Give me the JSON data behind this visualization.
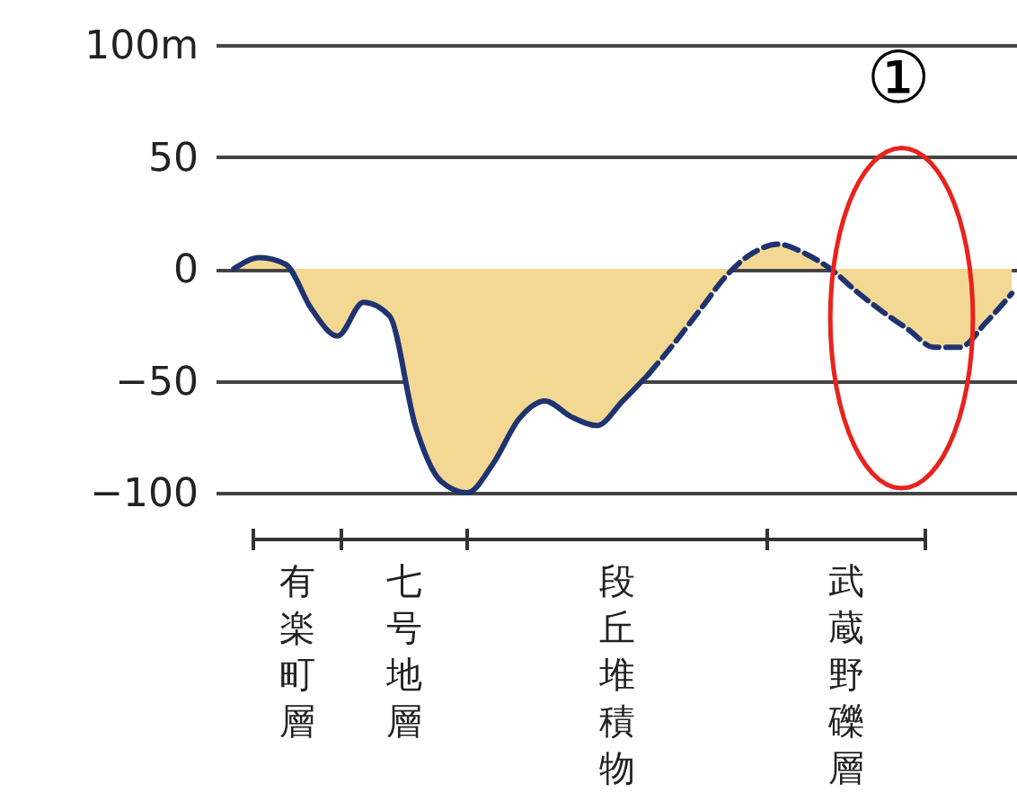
{
  "chart_data": {
    "type": "line",
    "categories": [
      null,
      null,
      null,
      null,
      null,
      null,
      null,
      null,
      null,
      null,
      null,
      null,
      null,
      null,
      null,
      null,
      null,
      null,
      null,
      null,
      null,
      null,
      null,
      null,
      null,
      null,
      null,
      null,
      null,
      null,
      null
    ],
    "series": [
      {
        "type": "area",
        "color": "#f3d894",
        "values": [
          0,
          5,
          2,
          -18,
          -30,
          -15,
          -21,
          -70,
          -95,
          -100,
          -87,
          -67,
          -59,
          -66,
          -70,
          -59,
          -47,
          -33,
          -18,
          -3,
          7,
          11,
          7,
          0,
          -10,
          -19,
          -27,
          -35,
          -35,
          -24,
          -11
        ]
      },
      {
        "color": "#1f3370",
        "line_style": "solid",
        "values": [
          0,
          5,
          2,
          -18,
          -30,
          -15,
          -21,
          -70,
          -95,
          -100,
          -87,
          -67,
          -59,
          -66,
          -70,
          -59,
          -47,
          null,
          null,
          null,
          null,
          null,
          null,
          null,
          null,
          null,
          null,
          null,
          null,
          null,
          null
        ]
      },
      {
        "color": "#1f3370",
        "line_style": "dashed",
        "values": [
          null,
          null,
          null,
          null,
          null,
          null,
          null,
          null,
          null,
          null,
          null,
          null,
          null,
          null,
          null,
          null,
          -47,
          -33,
          -18,
          -3,
          7,
          11,
          7,
          0,
          -10,
          -19,
          -27,
          -35,
          -35,
          -24,
          -11
        ]
      }
    ],
    "ylim": [
      -100,
      100
    ],
    "yticks": [
      {
        "value": 100,
        "label": "100m"
      },
      50,
      0,
      {
        "value": -50,
        "label": "−50"
      },
      {
        "value": -100,
        "label": "−100"
      }
    ],
    "grid": "y",
    "tick_labels": "y",
    "annotations": [
      "①",
      "有楽町層",
      "七号地層",
      "段丘堆積物",
      "武蔵野礫層"
    ]
  }
}
